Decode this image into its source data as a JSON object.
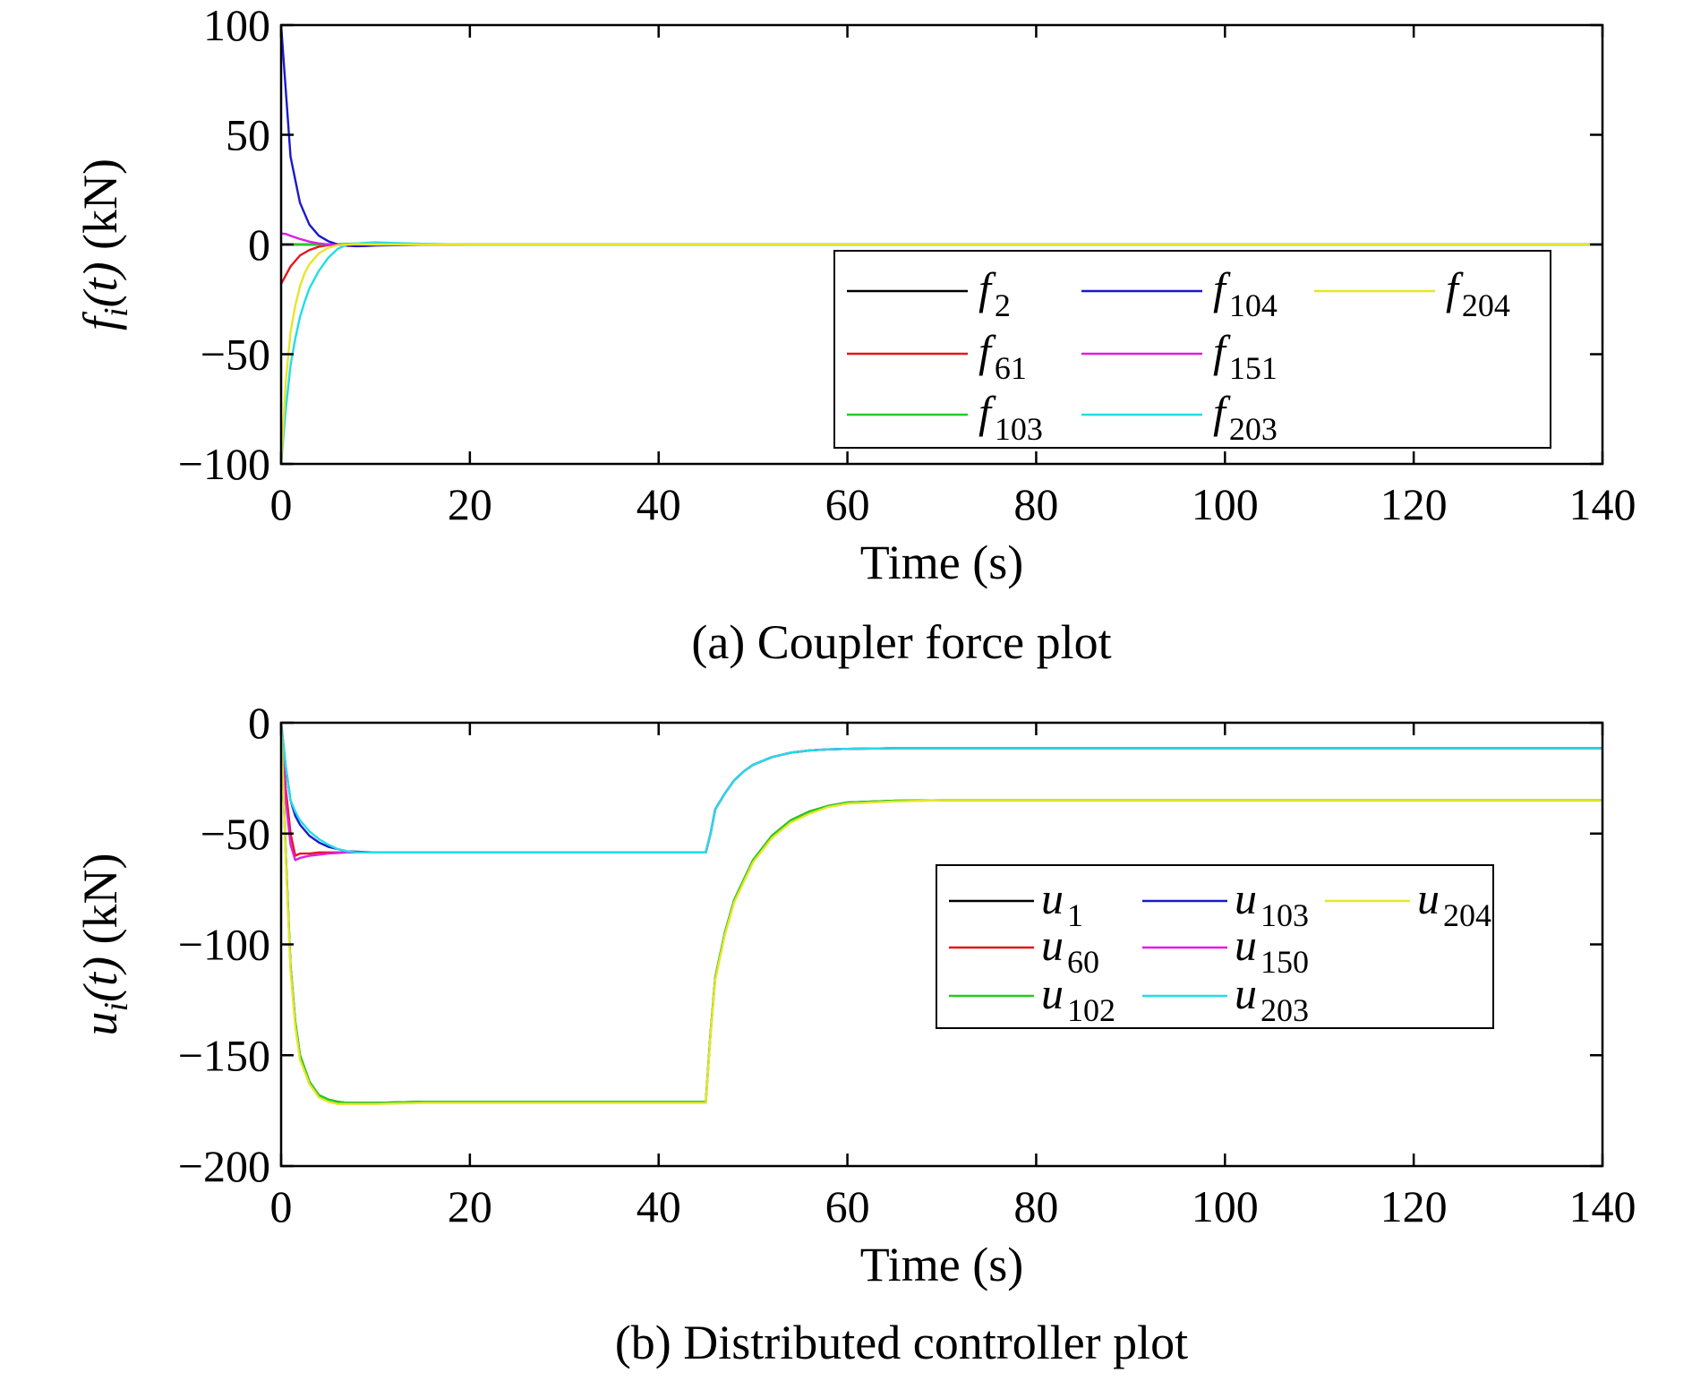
{
  "chart_data": [
    {
      "type": "line",
      "caption": "(a) Coupler force plot",
      "xlabel": "Time (s)",
      "ylabel": {
        "var": "f",
        "sub": "i",
        "arg": "(t)",
        "unit": " (kN)"
      },
      "xlim": [
        0,
        140
      ],
      "ylim": [
        -100,
        100
      ],
      "xticks": [
        0,
        20,
        40,
        60,
        80,
        100,
        120,
        140
      ],
      "xtick_labels": [
        "0",
        "20",
        "40",
        "60",
        "80",
        "100",
        "120",
        "140"
      ],
      "yticks": [
        100,
        50,
        0,
        -50,
        -100
      ],
      "ytick_labels": [
        "100",
        "50",
        "0",
        "−50",
        "−100"
      ],
      "grid": false,
      "legend_position": "bottom-right",
      "legend_columns": 3,
      "series": [
        {
          "name": "f2",
          "var": "f",
          "sub": "2",
          "color": "#000000",
          "x": [
            0,
            140
          ],
          "y": [
            0,
            0
          ]
        },
        {
          "name": "f61",
          "var": "f",
          "sub": "61",
          "color": "#e3171b",
          "x": [
            0,
            0.5,
            1,
            2,
            3,
            4,
            5,
            6,
            7,
            8,
            10,
            140
          ],
          "y": [
            -18,
            -14,
            -10,
            -5,
            -2.5,
            -1,
            -0.3,
            0,
            0.2,
            0.1,
            0,
            0
          ]
        },
        {
          "name": "f103",
          "var": "f",
          "sub": "103",
          "color": "#22cc22",
          "x": [
            0,
            5,
            8,
            10,
            12,
            15,
            20,
            140
          ],
          "y": [
            0,
            0,
            0.5,
            0.8,
            0.5,
            0.2,
            0,
            0
          ]
        },
        {
          "name": "f104",
          "var": "f",
          "sub": "104",
          "color": "#1a1acc",
          "x": [
            0,
            0.5,
            1,
            2,
            3,
            4,
            5,
            6,
            7,
            8,
            9,
            10,
            12,
            15,
            20,
            30,
            140
          ],
          "y": [
            100,
            70,
            40,
            19,
            9,
            4,
            1.5,
            0,
            -0.6,
            -0.8,
            -0.7,
            -0.5,
            -0.3,
            -0.1,
            0,
            0,
            0
          ]
        },
        {
          "name": "f151",
          "var": "f",
          "sub": "151",
          "color": "#e01ee0",
          "x": [
            0,
            0.5,
            1,
            2,
            3,
            4,
            5,
            6,
            7,
            8,
            140
          ],
          "y": [
            5,
            4.8,
            4,
            2.5,
            1.3,
            0.5,
            0,
            -0.2,
            -0.1,
            0,
            0
          ]
        },
        {
          "name": "f203",
          "var": "f",
          "sub": "203",
          "color": "#22dde6",
          "x": [
            0,
            0.5,
            1,
            1.5,
            2,
            2.5,
            3,
            4,
            5,
            6,
            7,
            8,
            9,
            10,
            12,
            15,
            20,
            140
          ],
          "y": [
            -100,
            -75,
            -55,
            -43,
            -33,
            -26,
            -20,
            -12,
            -6,
            -2,
            0,
            0.5,
            0.8,
            1,
            0.7,
            0.3,
            0,
            0
          ]
        },
        {
          "name": "f204",
          "var": "f",
          "sub": "204",
          "color": "#e6e62a",
          "x": [
            0,
            0.5,
            1,
            1.5,
            2,
            2.5,
            3,
            4,
            5,
            6,
            7,
            8,
            10,
            140
          ],
          "y": [
            -100,
            -62,
            -40,
            -28,
            -19,
            -13,
            -9,
            -4,
            -1.5,
            -0.3,
            0,
            0.2,
            0,
            0
          ]
        }
      ]
    },
    {
      "type": "line",
      "caption": "(b) Distributed controller plot",
      "xlabel": "Time (s)",
      "ylabel": {
        "var": "u",
        "sub": "i",
        "arg": "(t)",
        "unit": " (kN)"
      },
      "xlim": [
        0,
        140
      ],
      "ylim": [
        -200,
        0
      ],
      "xticks": [
        0,
        20,
        40,
        60,
        80,
        100,
        120,
        140
      ],
      "xtick_labels": [
        "0",
        "20",
        "40",
        "60",
        "80",
        "100",
        "120",
        "140"
      ],
      "yticks": [
        0,
        -50,
        -100,
        -150,
        -200
      ],
      "ytick_labels": [
        "0",
        "−50",
        "−100",
        "−150",
        "−200"
      ],
      "grid": false,
      "legend_position": "center-right",
      "legend_columns": 3,
      "series": [
        {
          "name": "u1",
          "var": "u",
          "sub": "1",
          "color": "#000000",
          "x": [
            0,
            0.5,
            1,
            1.5,
            2,
            3,
            4,
            5,
            6,
            7,
            8,
            10,
            15,
            20,
            30,
            40,
            45,
            45.5,
            46,
            47,
            48,
            50,
            52,
            54,
            56,
            58,
            60,
            65,
            70,
            140
          ],
          "y": [
            0,
            -60,
            -110,
            -135,
            -150,
            -162,
            -168,
            -170,
            -171,
            -171.5,
            -171.5,
            -171.5,
            -171,
            -171,
            -171,
            -171,
            -171,
            -140,
            -115,
            -95,
            -80,
            -62,
            -51,
            -44,
            -40,
            -37.5,
            -36,
            -35.2,
            -35,
            -35
          ]
        },
        {
          "name": "u60",
          "var": "u",
          "sub": "60",
          "color": "#e3171b",
          "x": [
            0,
            0.5,
            1,
            1.5,
            2,
            3,
            4,
            5,
            7,
            10,
            20,
            30,
            40,
            45,
            45.5,
            46,
            47,
            48,
            49,
            50,
            52,
            54,
            56,
            58,
            60,
            65,
            70,
            140
          ],
          "y": [
            0,
            -30,
            -50,
            -60,
            -59,
            -59,
            -58.5,
            -58.5,
            -58.5,
            -58.5,
            -58.5,
            -58.5,
            -58.5,
            -58.5,
            -50,
            -39,
            -32,
            -26,
            -22,
            -19,
            -15.5,
            -13.5,
            -12.5,
            -12,
            -11.8,
            -11.5,
            -11.5,
            -11.5
          ]
        },
        {
          "name": "u102",
          "var": "u",
          "sub": "102",
          "color": "#22cc22",
          "x": [
            0,
            0.5,
            1,
            1.5,
            2,
            3,
            4,
            5,
            6,
            7,
            8,
            10,
            15,
            20,
            30,
            40,
            45,
            45.5,
            46,
            47,
            48,
            50,
            52,
            54,
            56,
            58,
            60,
            65,
            70,
            140
          ],
          "y": [
            0,
            -60,
            -110,
            -135,
            -150,
            -162,
            -168,
            -170,
            -171,
            -171.5,
            -171.5,
            -171.5,
            -171,
            -171,
            -171,
            -171,
            -171,
            -140,
            -115,
            -95,
            -80,
            -62,
            -51,
            -44,
            -40,
            -37.5,
            -36,
            -35.2,
            -35,
            -35
          ]
        },
        {
          "name": "u103",
          "var": "u",
          "sub": "103",
          "color": "#1a1acc",
          "x": [
            0,
            0.5,
            1,
            1.5,
            2,
            3,
            4,
            5,
            7,
            10,
            20,
            30,
            40,
            45,
            45.5,
            46,
            47,
            48,
            49,
            50,
            52,
            54,
            56,
            58,
            60,
            65,
            70,
            140
          ],
          "y": [
            0,
            -20,
            -35,
            -42,
            -46,
            -51,
            -54,
            -56,
            -58,
            -58.5,
            -58.5,
            -58.5,
            -58.5,
            -58.5,
            -50,
            -39,
            -32,
            -26,
            -22,
            -19,
            -15.5,
            -13.5,
            -12.5,
            -12,
            -11.8,
            -11.5,
            -11.5,
            -11.5
          ]
        },
        {
          "name": "u150",
          "var": "u",
          "sub": "150",
          "color": "#e01ee0",
          "x": [
            0,
            0.5,
            1,
            1.5,
            2,
            3,
            4,
            5,
            7,
            10,
            20,
            30,
            40,
            45,
            45.5,
            46,
            47,
            48,
            49,
            50,
            52,
            54,
            56,
            58,
            60,
            65,
            70,
            140
          ],
          "y": [
            0,
            -35,
            -55,
            -62,
            -61,
            -60,
            -59.5,
            -59,
            -58.5,
            -58.5,
            -58.5,
            -58.5,
            -58.5,
            -58.5,
            -50,
            -39,
            -32,
            -26,
            -22,
            -19,
            -15.5,
            -13.5,
            -12.5,
            -12,
            -11.8,
            -11.5,
            -11.5,
            -11.5
          ]
        },
        {
          "name": "u203",
          "var": "u",
          "sub": "203",
          "color": "#22dde6",
          "x": [
            0,
            0.5,
            1,
            1.5,
            2,
            3,
            4,
            5,
            6,
            7,
            8,
            10,
            20,
            30,
            40,
            45,
            45.5,
            46,
            47,
            48,
            49,
            50,
            52,
            54,
            56,
            58,
            60,
            65,
            70,
            140
          ],
          "y": [
            0,
            -20,
            -35,
            -40,
            -44,
            -49,
            -52.5,
            -55,
            -57,
            -58,
            -58.5,
            -58.5,
            -58.5,
            -58.5,
            -58.5,
            -58.5,
            -50,
            -39,
            -32,
            -26,
            -22,
            -19,
            -15.5,
            -13.5,
            -12.5,
            -12,
            -11.8,
            -11.5,
            -11.5,
            -11.5
          ]
        },
        {
          "name": "u204",
          "var": "u",
          "sub": "204",
          "color": "#e6e62a",
          "x": [
            0,
            0.5,
            1,
            1.5,
            2,
            3,
            4,
            5,
            6,
            7,
            8,
            10,
            15,
            20,
            30,
            40,
            45,
            45.5,
            46,
            47,
            48,
            50,
            52,
            54,
            56,
            58,
            60,
            65,
            70,
            140
          ],
          "y": [
            0,
            -62,
            -112,
            -137,
            -152,
            -163,
            -169,
            -171,
            -172,
            -172,
            -172,
            -172,
            -171.5,
            -171.5,
            -171.5,
            -171.5,
            -171.5,
            -141,
            -116,
            -96,
            -81,
            -63,
            -52,
            -45,
            -41,
            -38,
            -36.5,
            -35.5,
            -35,
            -35
          ]
        }
      ]
    }
  ]
}
